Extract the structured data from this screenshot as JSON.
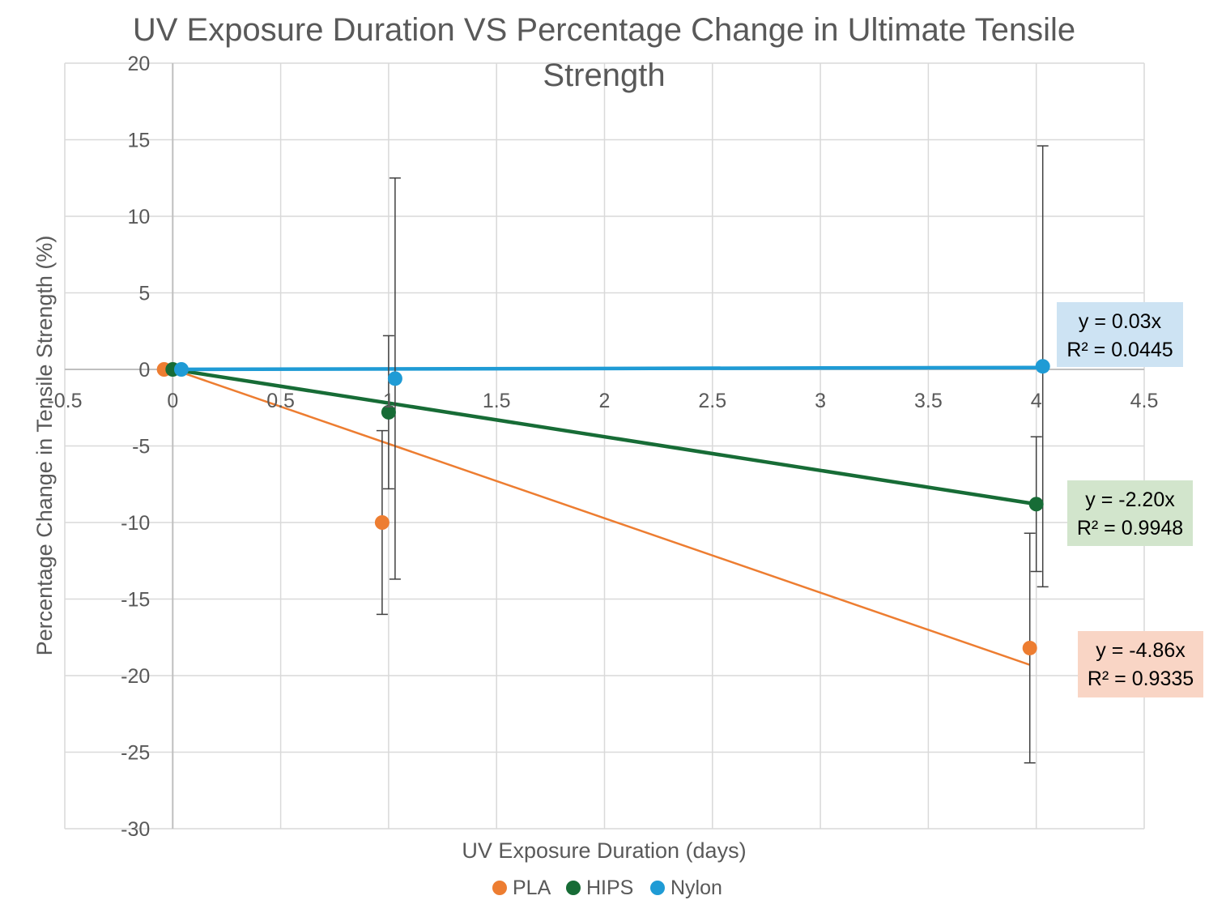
{
  "chart_data": {
    "type": "scatter",
    "title_line1": "UV Exposure Duration VS Percentage Change in Ultimate Tensile",
    "title_line2": "Strength",
    "xlabel": "UV Exposure Duration (days)",
    "ylabel": "Percentage Change in Tensile Strength (%)",
    "xlim": [
      -0.5,
      4.5
    ],
    "ylim": [
      -30,
      20
    ],
    "x_ticks": [
      -0.5,
      0,
      0.5,
      1,
      1.5,
      2,
      2.5,
      3,
      3.5,
      4,
      4.5
    ],
    "x_tick_labels": [
      "-0.5",
      "0",
      "0.5",
      "1",
      "1.5",
      "2",
      "2.5",
      "3",
      "3.5",
      "4",
      "4.5"
    ],
    "y_ticks": [
      20,
      15,
      10,
      5,
      0,
      -5,
      -10,
      -15,
      -20,
      -25,
      -30
    ],
    "y_tick_labels": [
      "20",
      "15",
      "10",
      "5",
      "0",
      "-5",
      "-10",
      "-15",
      "-20",
      "-25",
      "-30"
    ],
    "grid": true,
    "legend_position": "bottom",
    "series": [
      {
        "name": "PLA",
        "color": "#ED7D31",
        "x": [
          -0.04,
          0.97,
          3.97
        ],
        "y": [
          0,
          -10,
          -18.2
        ],
        "err": [
          0,
          6.0,
          7.5
        ],
        "trend_slope": -4.86,
        "trend_x": [
          0,
          3.97
        ],
        "trend_line_width": 2.5,
        "equation": "y = -4.86x",
        "r2_value": "R² = 0.9335",
        "eq_bg": "#F9D5C5"
      },
      {
        "name": "HIPS",
        "color": "#176C36",
        "x": [
          0,
          1.0,
          4.0
        ],
        "y": [
          0,
          -2.8,
          -8.8
        ],
        "err": [
          0,
          5.0,
          4.4
        ],
        "trend_slope": -2.2,
        "trend_x": [
          0,
          4.0
        ],
        "trend_line_width": 4.5,
        "equation": "y = -2.20x",
        "r2_value": "R² = 0.9948",
        "eq_bg": "#D2E5CC"
      },
      {
        "name": "Nylon",
        "color": "#1F9BD5",
        "x": [
          0.04,
          1.03,
          4.03
        ],
        "y": [
          0,
          -0.6,
          0.2
        ],
        "err": [
          0,
          13.1,
          14.4
        ],
        "trend_slope": 0.03,
        "trend_x": [
          0,
          4.03
        ],
        "trend_line_width": 4.5,
        "equation": "y = 0.03x",
        "r2_value": "R² = 0.0445",
        "eq_bg": "#CDE3F3"
      }
    ]
  }
}
